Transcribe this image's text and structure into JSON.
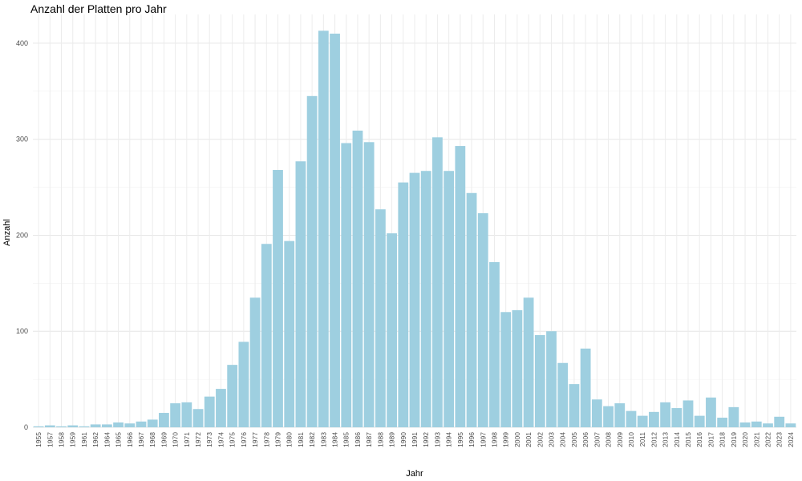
{
  "chart_data": {
    "type": "bar",
    "title": "Anzahl der Platten pro Jahr",
    "xlabel": "Jahr",
    "ylabel": "Anzahl",
    "ylim": [
      0,
      430
    ],
    "yticks": [
      0,
      100,
      200,
      300,
      400
    ],
    "grid": true,
    "bar_color": "#9ecfe0",
    "categories": [
      "1955",
      "1957",
      "1958",
      "1959",
      "1961",
      "1962",
      "1964",
      "1965",
      "1966",
      "1967",
      "1968",
      "1969",
      "1970",
      "1971",
      "1972",
      "1973",
      "1974",
      "1975",
      "1976",
      "1977",
      "1978",
      "1979",
      "1980",
      "1981",
      "1982",
      "1983",
      "1984",
      "1985",
      "1986",
      "1987",
      "1988",
      "1989",
      "1990",
      "1991",
      "1992",
      "1993",
      "1994",
      "1995",
      "1996",
      "1997",
      "1998",
      "1999",
      "2000",
      "2001",
      "2002",
      "2003",
      "2004",
      "2005",
      "2006",
      "2007",
      "2008",
      "2009",
      "2010",
      "2011",
      "2012",
      "2013",
      "2014",
      "2015",
      "2016",
      "2017",
      "2018",
      "2019",
      "2020",
      "2021",
      "2022",
      "2023",
      "2024"
    ],
    "values": [
      1,
      2,
      1,
      2,
      1,
      3,
      3,
      5,
      4,
      6,
      8,
      15,
      25,
      26,
      19,
      32,
      40,
      65,
      89,
      135,
      191,
      268,
      194,
      277,
      345,
      413,
      410,
      296,
      309,
      297,
      227,
      202,
      255,
      265,
      267,
      302,
      267,
      293,
      244,
      223,
      172,
      120,
      122,
      135,
      96,
      100,
      67,
      45,
      82,
      29,
      22,
      25,
      17,
      12,
      16,
      26,
      20,
      28,
      12,
      31,
      10,
      21,
      5,
      6,
      4,
      11,
      4
    ]
  }
}
